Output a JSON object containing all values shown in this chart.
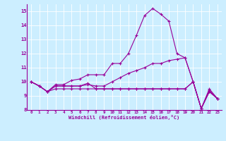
{
  "xlabel": "Windchill (Refroidissement éolien,°C)",
  "x": [
    0,
    1,
    2,
    3,
    4,
    5,
    6,
    7,
    8,
    9,
    10,
    11,
    12,
    13,
    14,
    15,
    16,
    17,
    18,
    19,
    20,
    21,
    22,
    23
  ],
  "line1": [
    10.0,
    9.7,
    9.3,
    9.7,
    9.7,
    9.7,
    9.7,
    9.9,
    9.5,
    9.5,
    9.5,
    9.5,
    9.5,
    9.5,
    9.5,
    9.5,
    9.5,
    9.5,
    9.5,
    9.5,
    10.0,
    8.1,
    9.4,
    8.8
  ],
  "line2": [
    10.0,
    9.7,
    9.3,
    9.8,
    9.8,
    10.1,
    10.2,
    10.5,
    10.5,
    10.5,
    11.3,
    11.3,
    12.0,
    13.3,
    14.7,
    15.2,
    14.8,
    14.3,
    12.0,
    11.7,
    10.0,
    8.1,
    9.5,
    8.8
  ],
  "line3": [
    10.0,
    9.7,
    9.3,
    9.7,
    9.7,
    9.7,
    9.7,
    9.8,
    9.7,
    9.7,
    10.0,
    10.3,
    10.6,
    10.8,
    11.0,
    11.3,
    11.3,
    11.5,
    11.6,
    11.7,
    10.0,
    8.1,
    9.3,
    8.8
  ],
  "line4": [
    10.0,
    9.7,
    9.3,
    9.5,
    9.5,
    9.5,
    9.5,
    9.5,
    9.5,
    9.5,
    9.5,
    9.5,
    9.5,
    9.5,
    9.5,
    9.5,
    9.5,
    9.5,
    9.5,
    9.5,
    10.0,
    8.1,
    9.3,
    8.8
  ],
  "color": "#990099",
  "bg_color": "#cceeff",
  "ylim": [
    8,
    15.5
  ],
  "xlim": [
    -0.5,
    23.5
  ],
  "yticks": [
    8,
    9,
    10,
    11,
    12,
    13,
    14,
    15
  ],
  "xticks": [
    0,
    1,
    2,
    3,
    4,
    5,
    6,
    7,
    8,
    9,
    10,
    11,
    12,
    13,
    14,
    15,
    16,
    17,
    18,
    19,
    20,
    21,
    22,
    23
  ]
}
